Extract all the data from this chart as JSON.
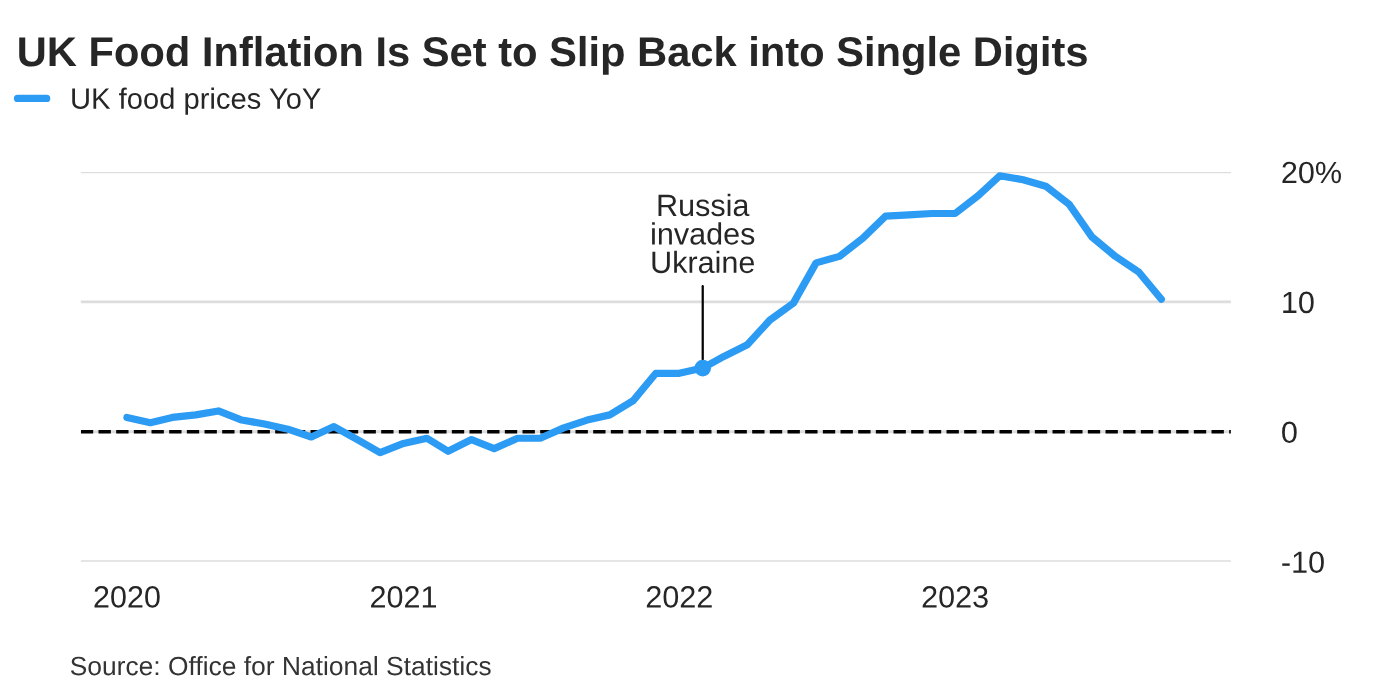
{
  "chart_data": {
    "type": "line",
    "title": "UK Food Inflation Is Set to Slip Back into Single Digits",
    "x": [
      "2020-01",
      "2020-02",
      "2020-03",
      "2020-04",
      "2020-05",
      "2020-06",
      "2020-07",
      "2020-08",
      "2020-09",
      "2020-10",
      "2020-11",
      "2020-12",
      "2021-01",
      "2021-02",
      "2021-03",
      "2021-04",
      "2021-05",
      "2021-06",
      "2021-07",
      "2021-08",
      "2021-09",
      "2021-10",
      "2021-11",
      "2021-12",
      "2022-01",
      "2022-02",
      "2022-03",
      "2022-04",
      "2022-05",
      "2022-06",
      "2022-07",
      "2022-08",
      "2022-09",
      "2022-10",
      "2022-11",
      "2022-12",
      "2023-01",
      "2023-02",
      "2023-03",
      "2023-04",
      "2023-05",
      "2023-06",
      "2023-07",
      "2023-08",
      "2023-09",
      "2023-10"
    ],
    "series": [
      {
        "name": "UK food prices YoY",
        "color": "#2b9bf4",
        "values": [
          1.1,
          0.7,
          1.1,
          1.3,
          1.6,
          0.9,
          0.6,
          0.2,
          -0.4,
          0.4,
          -0.6,
          -1.6,
          -0.9,
          -0.5,
          -1.5,
          -0.6,
          -1.3,
          -0.5,
          -0.5,
          0.3,
          0.9,
          1.3,
          2.4,
          4.5,
          4.5,
          4.9,
          5.8,
          6.7,
          8.6,
          9.9,
          13.0,
          13.5,
          14.9,
          16.6,
          16.7,
          16.8,
          16.8,
          18.2,
          19.7,
          19.4,
          18.9,
          17.5,
          15.0,
          13.5,
          12.3,
          10.2
        ]
      }
    ],
    "annotations": [
      {
        "text": "Russia\ninvades\nUkraine",
        "x": "2022-02",
        "y": 4.9
      },
      "Source: Office for National Statistics"
    ],
    "ref_lines": [
      {
        "axis": "y",
        "value": 0,
        "color": "#000000",
        "line_style": "dashed"
      }
    ],
    "xlim": [
      "2019-11",
      "2024-01"
    ],
    "xticks": [
      {
        "value": "2020-01",
        "label": "2020"
      },
      {
        "value": "2021-01",
        "label": "2021"
      },
      {
        "value": "2022-01",
        "label": "2022"
      },
      {
        "value": "2023-01",
        "label": "2023"
      }
    ],
    "ylim": [
      -10,
      20
    ],
    "yticks": [
      {
        "value": -10,
        "label": "-10"
      },
      {
        "value": 0,
        "label": "0"
      },
      {
        "value": 10,
        "label": "10"
      },
      {
        "value": 20,
        "label": "20%"
      }
    ],
    "grid": "y",
    "legend": "top left",
    "line_style": "solid",
    "marker": "none"
  }
}
